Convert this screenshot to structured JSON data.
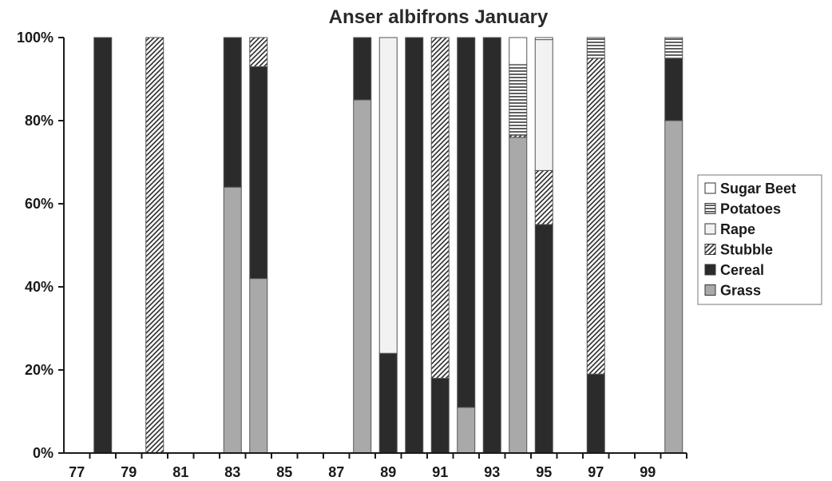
{
  "chart_data": {
    "type": "bar",
    "stacked": true,
    "percent": true,
    "title": "Anser albifrons January",
    "xlabel": "",
    "ylabel": "",
    "ylim": [
      0,
      100
    ],
    "y_ticks": [
      "0%",
      "20%",
      "40%",
      "60%",
      "80%",
      "100%"
    ],
    "x_tick_labels": [
      "77",
      "79",
      "81",
      "83",
      "85",
      "87",
      "89",
      "91",
      "93",
      "95",
      "97",
      "99"
    ],
    "categories": [
      "77",
      "78",
      "79",
      "80",
      "81",
      "82",
      "83",
      "84",
      "85",
      "86",
      "87",
      "88",
      "89",
      "90",
      "91",
      "92",
      "93",
      "94",
      "95",
      "96",
      "97",
      "98",
      "99",
      "100"
    ],
    "series": [
      {
        "name": "Grass",
        "color": "#a9a9a9",
        "pattern": "solid",
        "values": [
          0,
          0,
          0,
          0,
          0,
          0,
          64,
          42,
          0,
          0,
          0,
          85,
          0,
          0,
          0,
          11,
          0,
          76,
          0,
          0,
          0,
          0,
          0,
          80
        ]
      },
      {
        "name": "Cereal",
        "color": "#2b2b2b",
        "pattern": "solid",
        "values": [
          0,
          100,
          0,
          0,
          0,
          0,
          36,
          51,
          0,
          0,
          0,
          15,
          24,
          100,
          18,
          89,
          100,
          0,
          55,
          0,
          19,
          0,
          0,
          15
        ]
      },
      {
        "name": "Stubble",
        "color": "#ffffff",
        "pattern": "diagonal",
        "values": [
          0,
          0,
          0,
          100,
          0,
          0,
          0,
          7,
          0,
          0,
          0,
          0,
          0,
          0,
          82,
          0,
          0,
          0.5,
          13,
          0,
          76,
          0,
          0,
          0
        ]
      },
      {
        "name": "Rape",
        "color": "#f2f2f2",
        "pattern": "solid",
        "values": [
          0,
          0,
          0,
          0,
          0,
          0,
          0,
          0,
          0,
          0,
          0,
          0,
          76,
          0,
          0,
          0,
          0,
          0,
          31.5,
          0,
          0,
          0,
          0,
          0
        ]
      },
      {
        "name": "Potatoes",
        "color": "#ffffff",
        "pattern": "horizontal",
        "values": [
          0,
          0,
          0,
          0,
          0,
          0,
          0,
          0,
          0,
          0,
          0,
          0,
          0,
          0,
          0,
          0,
          0,
          17,
          0,
          0,
          5,
          0,
          0,
          5
        ]
      },
      {
        "name": "Sugar Beet",
        "color": "#ffffff",
        "pattern": "solid",
        "values": [
          0,
          0,
          0,
          0,
          0,
          0,
          0,
          0,
          0,
          0,
          0,
          0,
          0,
          0,
          0,
          0,
          0,
          6.5,
          0.5,
          0,
          0,
          0,
          0,
          0
        ]
      }
    ],
    "legend_position": "right",
    "grid": false
  }
}
